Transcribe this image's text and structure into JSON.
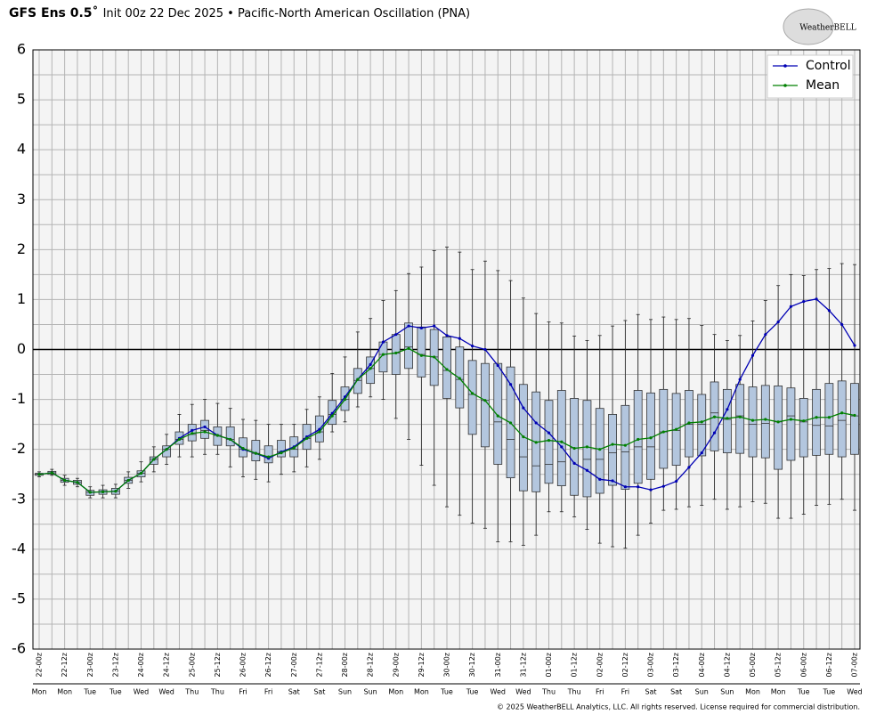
{
  "chart_data": {
    "type": "box",
    "title_bold": "GFS Ens 0.5˚",
    "title": "Init 00z 22 Dec 2025 • Pacific-North American Oscillation (PNA)",
    "logo": "WeatherBELL",
    "footer": "© 2025 WeatherBELL Analytics, LLC. All rights reserved. License required for commercial distribution.",
    "categories": [
      "22-00z",
      null,
      "22-12z",
      null,
      "23-00z",
      null,
      "23-12z",
      null,
      "24-00z",
      null,
      "24-12z",
      null,
      "25-00z",
      null,
      "25-12z",
      null,
      "26-00z",
      null,
      "26-12z",
      null,
      "27-00z",
      null,
      "27-12z",
      null,
      "28-00z",
      null,
      "28-12z",
      null,
      "29-00z",
      null,
      "29-12z",
      null,
      "30-00z",
      null,
      "30-12z",
      null,
      "31-00z",
      null,
      "31-12z",
      null,
      "01-00z",
      null,
      "01-12z",
      null,
      "02-00z",
      null,
      "02-12z",
      null,
      "03-00z",
      null,
      "03-12z",
      null,
      "04-00z",
      null,
      "04-12z",
      null,
      "05-00z",
      null,
      "05-12z",
      null,
      "06-00z",
      null,
      "06-12z",
      null,
      "07-00z"
    ],
    "days": [
      "Mon",
      null,
      "Mon",
      null,
      "Tue",
      null,
      "Tue",
      null,
      "Wed",
      null,
      "Wed",
      null,
      "Thu",
      null,
      "Thu",
      null,
      "Fri",
      null,
      "Fri",
      null,
      "Sat",
      null,
      "Sat",
      null,
      "Sun",
      null,
      "Sun",
      null,
      "Mon",
      null,
      "Mon",
      null,
      "Tue",
      null,
      "Tue",
      null,
      "Wed",
      null,
      "Wed",
      null,
      "Thu",
      null,
      "Thu",
      null,
      "Fri",
      null,
      "Fri",
      null,
      "Sat",
      null,
      "Sat",
      null,
      "Sun",
      null,
      "Sun",
      null,
      "Mon",
      null,
      "Mon",
      null,
      "Tue",
      null,
      "Tue",
      null,
      "Wed"
    ],
    "ylim": [
      -6,
      6
    ],
    "yticks": [
      -6,
      -5,
      -4,
      -3,
      -2,
      -1,
      0,
      1,
      2,
      3,
      4,
      5,
      6
    ],
    "y_minor_ticks": [
      -5.5,
      -4.5,
      -3.5,
      -2.5,
      -1.5,
      -0.5,
      0.5,
      1.5,
      2.5,
      3.5,
      4.5,
      5.5
    ],
    "grid": true,
    "legend": "upper right",
    "series": [
      {
        "name": "Control",
        "color": "#0000b4",
        "values": [
          -2.5,
          -2.47,
          -2.62,
          -2.66,
          -2.86,
          -2.85,
          -2.84,
          -2.62,
          -2.48,
          -2.2,
          -2.0,
          -1.78,
          -1.62,
          -1.55,
          -1.72,
          -1.8,
          -2.0,
          -2.08,
          -2.18,
          -2.05,
          -1.95,
          -1.75,
          -1.6,
          -1.28,
          -0.95,
          -0.6,
          -0.3,
          0.15,
          0.3,
          0.47,
          0.43,
          0.47,
          0.28,
          0.22,
          0.07,
          0.0,
          -0.32,
          -0.7,
          -1.17,
          -1.47,
          -1.67,
          -1.95,
          -2.28,
          -2.42,
          -2.6,
          -2.63,
          -2.75,
          -2.75,
          -2.81,
          -2.74,
          -2.64,
          -2.36,
          -2.07,
          -1.67,
          -1.2,
          -0.6,
          -0.12,
          0.3,
          0.55,
          0.86,
          0.96,
          1.01,
          0.78,
          0.5,
          0.08
        ]
      },
      {
        "name": "Mean",
        "color": "#008000",
        "values": [
          -2.5,
          -2.47,
          -2.62,
          -2.66,
          -2.86,
          -2.85,
          -2.84,
          -2.62,
          -2.48,
          -2.2,
          -2.0,
          -1.8,
          -1.68,
          -1.65,
          -1.72,
          -1.8,
          -1.98,
          -2.08,
          -2.15,
          -2.07,
          -1.97,
          -1.78,
          -1.65,
          -1.33,
          -1.0,
          -0.6,
          -0.38,
          -0.1,
          -0.07,
          0.02,
          -0.12,
          -0.15,
          -0.4,
          -0.58,
          -0.88,
          -1.02,
          -1.33,
          -1.47,
          -1.75,
          -1.86,
          -1.82,
          -1.85,
          -1.98,
          -1.95,
          -2.0,
          -1.9,
          -1.92,
          -1.8,
          -1.77,
          -1.65,
          -1.6,
          -1.47,
          -1.45,
          -1.35,
          -1.38,
          -1.35,
          -1.42,
          -1.4,
          -1.45,
          -1.4,
          -1.43,
          -1.36,
          -1.36,
          -1.27,
          -1.32
        ]
      }
    ],
    "boxes": {
      "color": "#b3c6de",
      "min": [
        -2.55,
        -2.52,
        -2.72,
        -2.75,
        -2.97,
        -2.97,
        -2.97,
        -2.78,
        -2.65,
        -2.45,
        -2.3,
        -2.15,
        -2.15,
        -2.1,
        -2.1,
        -2.35,
        -2.55,
        -2.6,
        -2.65,
        -2.5,
        -2.45,
        -2.35,
        -2.2,
        -1.65,
        -1.45,
        -1.15,
        -0.95,
        -1.0,
        -1.38,
        -1.8,
        -2.32,
        -2.72,
        -3.15,
        -3.32,
        -3.48,
        -3.58,
        -3.85,
        -3.85,
        -3.92,
        -3.72,
        -3.25,
        -3.25,
        -3.35,
        -3.6,
        -3.88,
        -3.95,
        -3.98,
        -3.72,
        -3.48,
        -3.22,
        -3.2,
        -3.15,
        -3.12,
        -3.0,
        -3.2,
        -3.15,
        -3.05,
        -3.08,
        -3.38,
        -3.38,
        -3.3,
        -3.12,
        -3.1,
        -3.0,
        -3.22
      ],
      "q1": [
        -2.52,
        -2.5,
        -2.66,
        -2.7,
        -2.92,
        -2.9,
        -2.9,
        -2.68,
        -2.55,
        -2.3,
        -2.15,
        -1.9,
        -1.83,
        -1.78,
        -1.92,
        -1.93,
        -2.15,
        -2.23,
        -2.27,
        -2.15,
        -2.15,
        -2.0,
        -1.85,
        -1.5,
        -1.22,
        -0.88,
        -0.68,
        -0.45,
        -0.5,
        -0.38,
        -0.55,
        -0.72,
        -0.98,
        -1.17,
        -1.7,
        -1.95,
        -2.3,
        -2.57,
        -2.83,
        -2.85,
        -2.68,
        -2.73,
        -2.92,
        -2.95,
        -2.88,
        -2.72,
        -2.8,
        -2.68,
        -2.6,
        -2.38,
        -2.32,
        -2.15,
        -2.13,
        -2.03,
        -2.07,
        -2.08,
        -2.15,
        -2.17,
        -2.4,
        -2.22,
        -2.15,
        -2.12,
        -2.1,
        -2.15,
        -2.1
      ],
      "median": [
        -2.5,
        -2.47,
        -2.62,
        -2.66,
        -2.86,
        -2.85,
        -2.84,
        -2.62,
        -2.48,
        -2.2,
        -2.0,
        -1.8,
        -1.7,
        -1.62,
        -1.72,
        -1.8,
        -2.0,
        -2.08,
        -2.15,
        -2.05,
        -2.0,
        -1.78,
        -1.65,
        -1.3,
        -1.0,
        -0.62,
        -0.38,
        -0.1,
        -0.07,
        0.05,
        -0.1,
        -0.15,
        -0.42,
        -0.6,
        -0.9,
        -1.02,
        -1.45,
        -1.8,
        -2.15,
        -2.33,
        -2.3,
        -2.25,
        -1.97,
        -2.2,
        -2.2,
        -2.07,
        -2.05,
        -1.95,
        -1.95,
        -1.65,
        -1.62,
        -1.5,
        -1.5,
        -1.27,
        -1.4,
        -1.33,
        -1.5,
        -1.48,
        -1.45,
        -1.33,
        -1.45,
        -1.52,
        -1.53,
        -1.42,
        -1.33
      ],
      "q3": [
        -2.48,
        -2.44,
        -2.58,
        -2.62,
        -2.82,
        -2.81,
        -2.78,
        -2.56,
        -2.43,
        -2.15,
        -1.93,
        -1.65,
        -1.5,
        -1.42,
        -1.55,
        -1.55,
        -1.77,
        -1.82,
        -1.93,
        -1.82,
        -1.75,
        -1.5,
        -1.33,
        -1.02,
        -0.75,
        -0.38,
        -0.15,
        0.15,
        0.3,
        0.53,
        0.45,
        0.4,
        0.25,
        0.05,
        -0.22,
        -0.28,
        -0.28,
        -0.35,
        -0.7,
        -0.85,
        -1.02,
        -0.82,
        -0.98,
        -1.02,
        -1.18,
        -1.3,
        -1.12,
        -0.82,
        -0.87,
        -0.8,
        -0.88,
        -0.82,
        -0.9,
        -0.65,
        -0.8,
        -0.7,
        -0.75,
        -0.72,
        -0.73,
        -0.77,
        -0.98,
        -0.8,
        -0.68,
        -0.63,
        -0.68
      ],
      "max": [
        -2.45,
        -2.4,
        -2.52,
        -2.58,
        -2.75,
        -2.72,
        -2.7,
        -2.45,
        -2.25,
        -1.95,
        -1.7,
        -1.3,
        -1.1,
        -1.0,
        -1.08,
        -1.18,
        -1.4,
        -1.42,
        -1.5,
        -1.5,
        -1.5,
        -1.2,
        -0.95,
        -0.48,
        -0.15,
        0.35,
        0.62,
        0.98,
        1.18,
        1.52,
        1.65,
        1.98,
        2.05,
        1.95,
        1.6,
        1.77,
        1.58,
        1.38,
        1.03,
        0.72,
        0.55,
        0.53,
        0.27,
        0.18,
        0.28,
        0.47,
        0.58,
        0.7,
        0.6,
        0.65,
        0.6,
        0.62,
        0.48,
        0.3,
        0.18,
        0.28,
        0.57,
        0.98,
        1.28,
        1.5,
        1.48,
        1.6,
        1.62,
        1.72,
        1.7
      ]
    }
  }
}
